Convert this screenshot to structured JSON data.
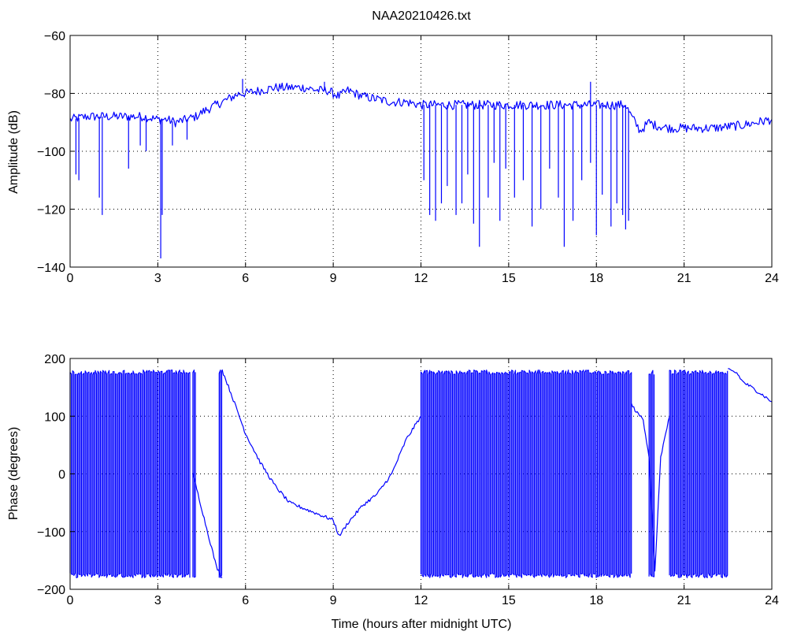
{
  "chart_data": [
    {
      "type": "line",
      "title": "NAA20210426.txt",
      "xlabel": "",
      "ylabel": "Amplitude (dB)",
      "xlim": [
        0,
        24
      ],
      "ylim": [
        -140,
        -60
      ],
      "xticks": [
        0,
        3,
        6,
        9,
        12,
        15,
        18,
        21,
        24
      ],
      "yticks": [
        -140,
        -120,
        -100,
        -80,
        -60
      ],
      "xtick_labels": [
        "0",
        "3",
        "6",
        "9",
        "12",
        "15",
        "18",
        "21",
        "24"
      ],
      "ytick_labels": [
        "−140",
        "−120",
        "−100",
        "−80",
        "−60"
      ],
      "grid": true,
      "color": "#0000ff",
      "series": [
        {
          "x": [
            0,
            0.3,
            0.6,
            1,
            1.5,
            2,
            2.5,
            3,
            3.3,
            3.6,
            4,
            4.3,
            4.6,
            5,
            5.4,
            5.8,
            6,
            6.5,
            7,
            7.5,
            8,
            8.5,
            8.8,
            9,
            9.2,
            9.5,
            10,
            10.5,
            11,
            11.5,
            12,
            12.5,
            13,
            14,
            15,
            16,
            17,
            18,
            18.5,
            19,
            19.2,
            19.5,
            19.8,
            20,
            20.5,
            21,
            21.5,
            22,
            23,
            24
          ],
          "y": [
            -89,
            -88.5,
            -88,
            -88,
            -88,
            -88,
            -88,
            -89,
            -89,
            -90,
            -89,
            -88,
            -86,
            -84,
            -82,
            -80,
            -80,
            -79,
            -78,
            -78,
            -78,
            -79,
            -79,
            -80,
            -81,
            -79,
            -81,
            -82,
            -83,
            -83,
            -84,
            -84,
            -84,
            -84,
            -84,
            -84,
            -84,
            -84,
            -84,
            -84,
            -88,
            -93,
            -90,
            -91,
            -92,
            -92,
            -92,
            -92,
            -91,
            -89
          ]
        }
      ],
      "spikes": [
        [
          0.2,
          -108
        ],
        [
          0.3,
          -110
        ],
        [
          1,
          -116
        ],
        [
          1.1,
          -122
        ],
        [
          2,
          -106
        ],
        [
          2.4,
          -98
        ],
        [
          2.6,
          -100
        ],
        [
          3.1,
          -137
        ],
        [
          3.15,
          -122
        ],
        [
          3.5,
          -98
        ],
        [
          4,
          -96
        ],
        [
          5.9,
          -75
        ],
        [
          8.7,
          -76
        ],
        [
          17.8,
          -76
        ],
        [
          12.1,
          -110
        ],
        [
          12.3,
          -122
        ],
        [
          12.5,
          -124
        ],
        [
          12.7,
          -118
        ],
        [
          12.9,
          -112
        ],
        [
          13.2,
          -122
        ],
        [
          13.4,
          -118
        ],
        [
          13.6,
          -108
        ],
        [
          13.8,
          -125
        ],
        [
          14,
          -133
        ],
        [
          14.3,
          -116
        ],
        [
          14.5,
          -104
        ],
        [
          14.7,
          -124
        ],
        [
          14.9,
          -106
        ],
        [
          15.2,
          -116
        ],
        [
          15.5,
          -110
        ],
        [
          15.8,
          -126
        ],
        [
          16.1,
          -120
        ],
        [
          16.4,
          -106
        ],
        [
          16.7,
          -116
        ],
        [
          16.9,
          -133
        ],
        [
          17.2,
          -124
        ],
        [
          17.5,
          -110
        ],
        [
          17.8,
          -104
        ],
        [
          18,
          -129
        ],
        [
          18.2,
          -115
        ],
        [
          18.5,
          -126
        ],
        [
          18.7,
          -118
        ],
        [
          18.9,
          -122
        ],
        [
          19,
          -127
        ],
        [
          19.1,
          -124
        ]
      ]
    },
    {
      "type": "line",
      "title": "",
      "xlabel": "Time (hours after midnight UTC)",
      "ylabel": "Phase (degrees)",
      "xlim": [
        0,
        24
      ],
      "ylim": [
        -200,
        200
      ],
      "xticks": [
        0,
        3,
        6,
        9,
        12,
        15,
        18,
        21,
        24
      ],
      "yticks": [
        -200,
        -100,
        0,
        100,
        200
      ],
      "xtick_labels": [
        "0",
        "3",
        "6",
        "9",
        "12",
        "15",
        "18",
        "21",
        "24"
      ],
      "ytick_labels": [
        "−200",
        "−100",
        "0",
        "100",
        "200"
      ],
      "grid": true,
      "color": "#0000ff",
      "series": [
        {
          "x": [
            4.2,
            4.5,
            4.8,
            5.0,
            5.2
          ],
          "y": [
            0,
            -60,
            -120,
            -160,
            -180
          ]
        },
        {
          "x": [
            5.2,
            5.5,
            6,
            6.5,
            7,
            7.5,
            8,
            8.5,
            9,
            9.2,
            9.5,
            10,
            10.5,
            11,
            11.5,
            12
          ],
          "y": [
            180,
            140,
            70,
            20,
            -20,
            -50,
            -60,
            -70,
            -80,
            -108,
            -85,
            -55,
            -35,
            0,
            60,
            100
          ]
        },
        {
          "x": [
            19.2,
            19.4,
            19.6,
            19.8,
            20,
            20.2,
            20.5
          ],
          "y": [
            120,
            105,
            95,
            30,
            -170,
            30,
            100
          ]
        },
        {
          "x": [
            22.5,
            22.8,
            23,
            23.3,
            23.6,
            24
          ],
          "y": [
            180,
            175,
            160,
            150,
            140,
            125
          ]
        }
      ],
      "wrap_bands": [
        [
          0,
          4.1
        ],
        [
          4.2,
          4.3
        ],
        [
          5.1,
          5.2
        ],
        [
          12,
          19.2
        ],
        [
          19.8,
          20.0
        ],
        [
          20.5,
          22.5
        ]
      ]
    }
  ]
}
